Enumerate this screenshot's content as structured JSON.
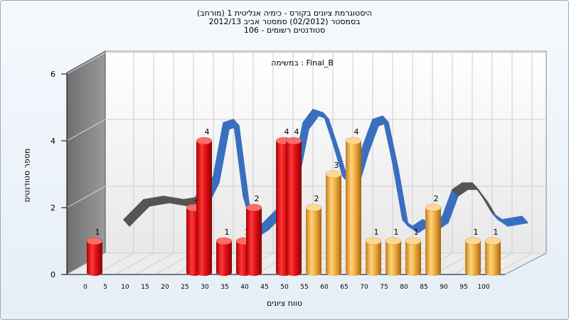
{
  "chart_data": {
    "type": "bar",
    "title_lines": [
      "היסטוגרמת ציונים בקורס - כימיה אנליטית 1 (מורחב)",
      "בסמסטר  (02/2012)  סמסטר אביב 2012/13",
      "סטודנטים רשומים - 106"
    ],
    "annotation": "במשימה : Final_B",
    "xlabel": "טווח ציונים",
    "ylabel": "מספר סטודנטים",
    "x_ticks": [
      "0",
      "5",
      "10",
      "15",
      "20",
      "25",
      "30",
      "35",
      "40",
      "45",
      "50",
      "55",
      "60",
      "65",
      "70",
      "75",
      "80",
      "85",
      "90",
      "95",
      "100"
    ],
    "y_ticks": [
      "0",
      "2",
      "4",
      "6"
    ],
    "ylim": [
      0,
      6
    ],
    "bars": [
      {
        "x": "0",
        "value": 1,
        "color": "red"
      },
      {
        "x": "25",
        "value": 2,
        "color": "red"
      },
      {
        "x": "27.5",
        "value": 4,
        "color": "red"
      },
      {
        "x": "32.5",
        "value": 1,
        "color": "red"
      },
      {
        "x": "37.5",
        "value": 1,
        "color": "red"
      },
      {
        "x": "40",
        "value": 2,
        "color": "red"
      },
      {
        "x": "47.5",
        "value": 4,
        "color": "red"
      },
      {
        "x": "50",
        "value": 4,
        "color": "red"
      },
      {
        "x": "55",
        "value": 2,
        "color": "orange"
      },
      {
        "x": "60",
        "value": 3,
        "color": "orange"
      },
      {
        "x": "65",
        "value": 4,
        "color": "orange"
      },
      {
        "x": "70",
        "value": 1,
        "color": "orange"
      },
      {
        "x": "75",
        "value": 1,
        "color": "orange"
      },
      {
        "x": "80",
        "value": 1,
        "color": "orange"
      },
      {
        "x": "85",
        "value": 2,
        "color": "orange"
      },
      {
        "x": "95",
        "value": 1,
        "color": "orange"
      },
      {
        "x": "100",
        "value": 1,
        "color": "orange"
      }
    ],
    "curve": [
      [
        5,
        1.3
      ],
      [
        10,
        1.9
      ],
      [
        15,
        2.0
      ],
      [
        20,
        1.9
      ],
      [
        25,
        2.0
      ],
      [
        27.5,
        2.6
      ],
      [
        30,
        4.2
      ],
      [
        32.5,
        4.3
      ],
      [
        35,
        2.0
      ],
      [
        37.5,
        1.0
      ],
      [
        40,
        1.2
      ],
      [
        45,
        1.8
      ],
      [
        47.5,
        2.7
      ],
      [
        50,
        4.2
      ],
      [
        52.5,
        4.6
      ],
      [
        55,
        4.5
      ],
      [
        57.5,
        3.6
      ],
      [
        60,
        2.6
      ],
      [
        62.5,
        2.5
      ],
      [
        65,
        3.5
      ],
      [
        67.5,
        4.3
      ],
      [
        70,
        4.4
      ],
      [
        72.5,
        3.0
      ],
      [
        75,
        1.3
      ],
      [
        77.5,
        1.1
      ],
      [
        80,
        1.3
      ],
      [
        82.5,
        1.2
      ],
      [
        85,
        1.4
      ],
      [
        87.5,
        2.2
      ],
      [
        90,
        2.4
      ],
      [
        92.5,
        2.4
      ],
      [
        95,
        2.0
      ],
      [
        97.5,
        1.5
      ],
      [
        100,
        1.3
      ],
      [
        105,
        1.4
      ]
    ],
    "colors": {
      "red": "#e8141b",
      "orange": "#f1b044",
      "curve_blue": "#3a6fc0",
      "curve_gray": "#555555",
      "wall": "#808080"
    }
  }
}
